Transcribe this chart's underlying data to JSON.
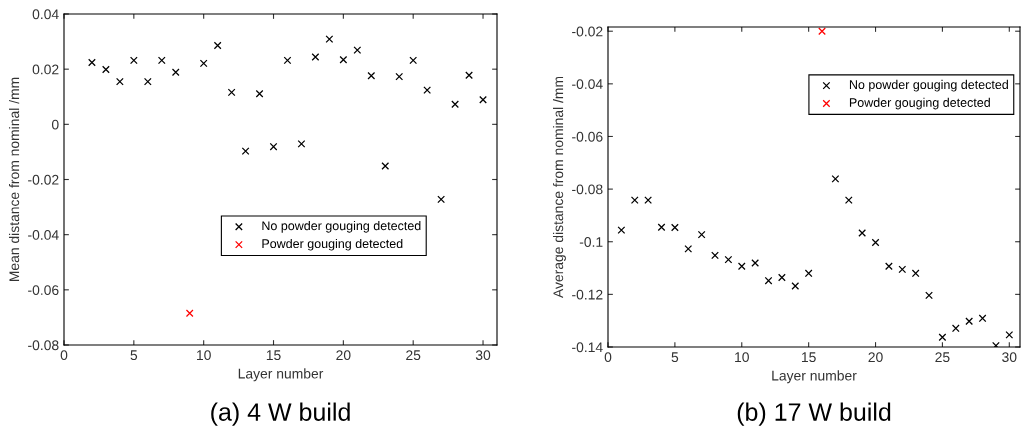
{
  "chart_data": [
    {
      "type": "scatter",
      "xlabel": "Layer number",
      "ylabel": "Mean distance from nominal /mm",
      "annotations": [
        "(a) 4 W build"
      ],
      "xlim": [
        0,
        31
      ],
      "xticks": [
        0,
        5,
        10,
        15,
        20,
        25,
        30
      ],
      "ylim": [
        -0.08,
        0.04
      ],
      "yticks": [
        -0.08,
        -0.06,
        -0.04,
        -0.02,
        0,
        0.02,
        0.04
      ],
      "marker": "cross",
      "legend": "center",
      "grid": false,
      "series": [
        {
          "name": "No powder gouging detected",
          "color": "#000000",
          "x": [
            2,
            3,
            4,
            5,
            6,
            7,
            8,
            10,
            11,
            12,
            13,
            14,
            15,
            16,
            17,
            18,
            19,
            20,
            21,
            22,
            23,
            24,
            25,
            26,
            27,
            28,
            29,
            30
          ],
          "values": [
            0.0224,
            0.0199,
            0.0155,
            0.0232,
            0.0155,
            0.0232,
            0.0189,
            0.0221,
            0.0286,
            0.0116,
            -0.0097,
            0.0111,
            -0.0081,
            0.0232,
            -0.0071,
            0.0244,
            0.0309,
            0.0234,
            0.0269,
            0.0176,
            -0.0151,
            0.0173,
            0.0232,
            0.0124,
            -0.0272,
            0.0073,
            0.0178,
            0.0089
          ]
        },
        {
          "name": "Powder gouging detected",
          "color": "#ff0000",
          "x": [
            9
          ],
          "values": [
            -0.0685
          ]
        }
      ]
    },
    {
      "type": "scatter",
      "xlabel": "Layer number",
      "ylabel": "Average distance from nominal /mm",
      "annotations": [
        "(b) 17 W build"
      ],
      "xlim": [
        0,
        30.8
      ],
      "xticks": [
        0,
        5,
        10,
        15,
        20,
        25,
        30
      ],
      "ylim": [
        -0.14,
        -0.0184
      ],
      "yticks": [
        -0.14,
        -0.12,
        -0.1,
        -0.08,
        -0.06,
        -0.04,
        -0.02
      ],
      "marker": "cross",
      "legend": "top right",
      "grid": false,
      "series": [
        {
          "name": "No powder gouging detected",
          "color": "#000000",
          "x": [
            1,
            2,
            3,
            4,
            5,
            6,
            7,
            8,
            9,
            10,
            11,
            12,
            13,
            14,
            15,
            17,
            18,
            19,
            20,
            21,
            22,
            23,
            24,
            25,
            26,
            27,
            28,
            29,
            30
          ],
          "values": [
            -0.0956,
            -0.0842,
            -0.0842,
            -0.0945,
            -0.0946,
            -0.1027,
            -0.0973,
            -0.1052,
            -0.1068,
            -0.1093,
            -0.1081,
            -0.1148,
            -0.1136,
            -0.1168,
            -0.112,
            -0.0761,
            -0.0842,
            -0.0967,
            -0.1003,
            -0.1093,
            -0.1105,
            -0.112,
            -0.1204,
            -0.1363,
            -0.1329,
            -0.1302,
            -0.1291,
            -0.1395,
            -0.1354
          ]
        },
        {
          "name": "Powder gouging detected",
          "color": "#ff0000",
          "x": [
            16
          ],
          "values": [
            -0.02
          ]
        }
      ]
    }
  ]
}
